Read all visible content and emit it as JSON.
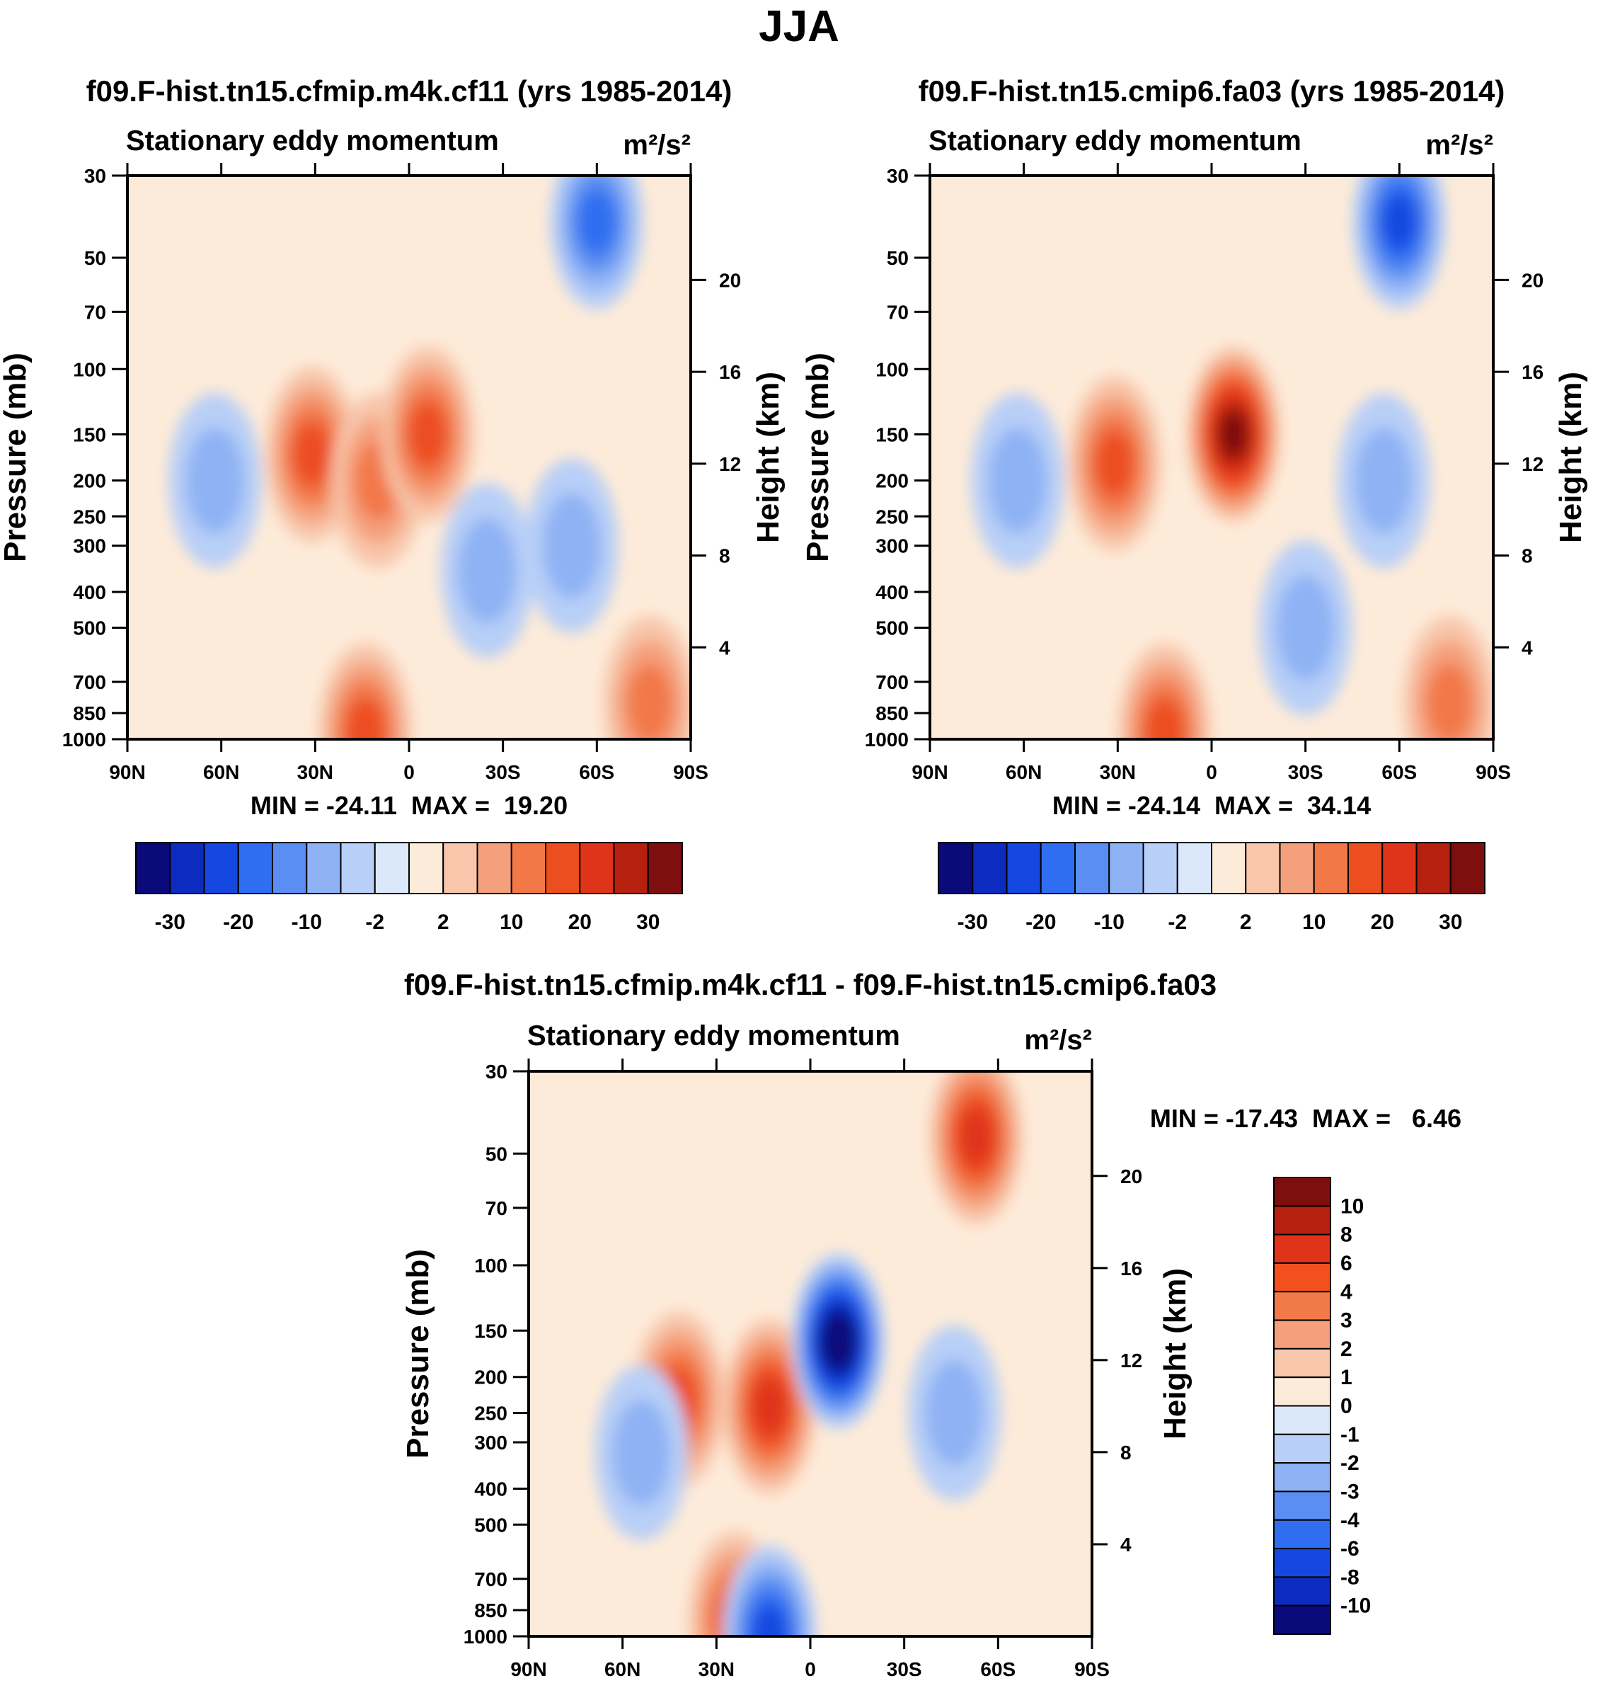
{
  "figure": {
    "title": "JJA"
  },
  "chart_data": [
    {
      "type": "heatmap",
      "title": "f09.F-hist.tn15.cfmip.m4k.cf11 (yrs 1985-2014)",
      "subtitle": "Stationary eddy momentum",
      "units_label": "m²/s²",
      "xlabel": "",
      "ylabel": "Pressure (mb)",
      "y2label": "Height (km)",
      "x_ticks": [
        "90N",
        "60N",
        "30N",
        "0",
        "30S",
        "60S",
        "90S"
      ],
      "x_range": [
        90,
        -90
      ],
      "y_ticks": [
        "30",
        "50",
        "70",
        "100",
        "150",
        "200",
        "250",
        "300",
        "400",
        "500",
        "700",
        "850",
        "1000"
      ],
      "y_range": [
        1000,
        30
      ],
      "y2_ticks": [
        "20",
        "16",
        "12",
        "8",
        "4"
      ],
      "stats": "MIN = -24.11  MAX =  19.20",
      "colorbar": {
        "levels": [
          "-30",
          "-20",
          "-10",
          "-2",
          "2",
          "10",
          "20",
          "30"
        ],
        "colors": [
          "#0a0a7a",
          "#0e2bc0",
          "#1448e0",
          "#2f6ef0",
          "#5a8ef2",
          "#8fb2f4",
          "#b8cff7",
          "#dbe8fb",
          "#fdebd9",
          "#f8c6ab",
          "#f4a07c",
          "#f27848",
          "#ec4e20",
          "#e0341a",
          "#b5200f",
          "#7f0e0e"
        ]
      },
      "features": [
        {
          "kind": "neg",
          "lat": 62,
          "p": 200,
          "level": 1
        },
        {
          "kind": "pos",
          "lat": 31,
          "p": 170,
          "level": 3
        },
        {
          "kind": "pos",
          "lat": 10,
          "p": 200,
          "level": 2
        },
        {
          "kind": "pos",
          "lat": -6,
          "p": 150,
          "level": 3
        },
        {
          "kind": "neg",
          "lat": -60,
          "p": 40,
          "level": 3
        },
        {
          "kind": "neg",
          "lat": -52,
          "p": 300,
          "level": 1
        },
        {
          "kind": "neg",
          "lat": -25,
          "p": 350,
          "level": 1
        },
        {
          "kind": "pos",
          "lat": 14,
          "p": 950,
          "level": 3
        },
        {
          "kind": "pos",
          "lat": -77,
          "p": 800,
          "level": 2
        }
      ]
    },
    {
      "type": "heatmap",
      "title": "f09.F-hist.tn15.cmip6.fa03 (yrs 1985-2014)",
      "subtitle": "Stationary eddy momentum",
      "units_label": "m²/s²",
      "xlabel": "",
      "ylabel": "Pressure (mb)",
      "y2label": "Height (km)",
      "x_ticks": [
        "90N",
        "60N",
        "30N",
        "0",
        "30S",
        "60S",
        "90S"
      ],
      "x_range": [
        90,
        -90
      ],
      "y_ticks": [
        "30",
        "50",
        "70",
        "100",
        "150",
        "200",
        "250",
        "300",
        "400",
        "500",
        "700",
        "850",
        "1000"
      ],
      "y_range": [
        1000,
        30
      ],
      "y2_ticks": [
        "20",
        "16",
        "12",
        "8",
        "4"
      ],
      "stats": "MIN = -24.14  MAX =  34.14",
      "colorbar": {
        "levels": [
          "-30",
          "-20",
          "-10",
          "-2",
          "2",
          "10",
          "20",
          "30"
        ],
        "colors": [
          "#0a0a7a",
          "#0e2bc0",
          "#1448e0",
          "#2f6ef0",
          "#5a8ef2",
          "#8fb2f4",
          "#b8cff7",
          "#dbe8fb",
          "#fdebd9",
          "#f8c6ab",
          "#f4a07c",
          "#f27848",
          "#ec4e20",
          "#e0341a",
          "#b5200f",
          "#7f0e0e"
        ]
      },
      "features": [
        {
          "kind": "neg",
          "lat": 62,
          "p": 200,
          "level": 1
        },
        {
          "kind": "pos",
          "lat": 31,
          "p": 180,
          "level": 3
        },
        {
          "kind": "pos",
          "lat": -7,
          "p": 150,
          "level": 6
        },
        {
          "kind": "neg",
          "lat": -60,
          "p": 40,
          "level": 4
        },
        {
          "kind": "neg",
          "lat": -55,
          "p": 200,
          "level": 1
        },
        {
          "kind": "neg",
          "lat": -30,
          "p": 500,
          "level": 1
        },
        {
          "kind": "pos",
          "lat": 15,
          "p": 950,
          "level": 3
        },
        {
          "kind": "pos",
          "lat": -76,
          "p": 800,
          "level": 2
        }
      ]
    },
    {
      "type": "heatmap",
      "title": "f09.F-hist.tn15.cfmip.m4k.cf11 - f09.F-hist.tn15.cmip6.fa03",
      "subtitle": "Stationary eddy momentum",
      "units_label": "m²/s²",
      "xlabel": "",
      "ylabel": "Pressure (mb)",
      "y2label": "Height (km)",
      "x_ticks": [
        "90N",
        "60N",
        "30N",
        "0",
        "30S",
        "60S",
        "90S"
      ],
      "x_range": [
        90,
        -90
      ],
      "y_ticks": [
        "30",
        "50",
        "70",
        "100",
        "150",
        "200",
        "250",
        "300",
        "400",
        "500",
        "700",
        "850",
        "1000"
      ],
      "y_range": [
        1000,
        30
      ],
      "y2_ticks": [
        "20",
        "16",
        "12",
        "8",
        "4"
      ],
      "stats": "MIN = -17.43  MAX =   6.46",
      "colorbar": {
        "levels": [
          "10",
          "8",
          "6",
          "4",
          "3",
          "2",
          "1",
          "0",
          "-1",
          "-2",
          "-3",
          "-4",
          "-6",
          "-8",
          "-10"
        ],
        "colors": [
          "#7f0e0e",
          "#b5200f",
          "#e0341a",
          "#f2501f",
          "#f27a48",
          "#f4a07c",
          "#f8c6ab",
          "#fdebd9",
          "#dbe8fb",
          "#b8cff7",
          "#8fb2f4",
          "#5a8ef2",
          "#2f6ef0",
          "#1448e0",
          "#0e2bc0",
          "#0a0a7a"
        ]
      },
      "features": [
        {
          "kind": "pos",
          "lat": 42,
          "p": 230,
          "level": 3
        },
        {
          "kind": "pos",
          "lat": 13,
          "p": 240,
          "level": 4
        },
        {
          "kind": "neg",
          "lat": -9,
          "p": 160,
          "level": 7
        },
        {
          "kind": "pos",
          "lat": -53,
          "p": 45,
          "level": 4
        },
        {
          "kind": "neg",
          "lat": 54,
          "p": 320,
          "level": 1
        },
        {
          "kind": "neg",
          "lat": -46,
          "p": 250,
          "level": 1
        },
        {
          "kind": "pos",
          "lat": 24,
          "p": 900,
          "level": 3
        },
        {
          "kind": "neg",
          "lat": 13,
          "p": 980,
          "level": 4
        }
      ]
    }
  ]
}
